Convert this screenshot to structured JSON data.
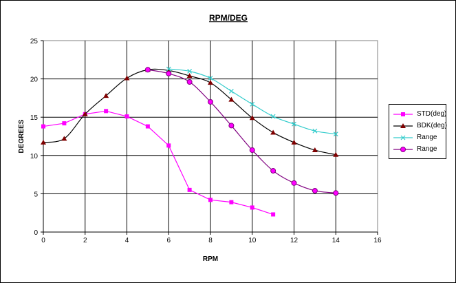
{
  "chart_data": {
    "type": "line",
    "title": "RPM/DEG",
    "xlabel": "RPM",
    "ylabel": "DEGREES",
    "xlim": [
      0,
      16
    ],
    "ylim": [
      0,
      25
    ],
    "xticks": [
      "0",
      "2",
      "4",
      "6",
      "8",
      "10",
      "12",
      "14",
      "16"
    ],
    "yticks": [
      "0",
      "5",
      "10",
      "15",
      "20",
      "25"
    ],
    "grid": true,
    "legend": "right",
    "series": [
      {
        "name": "STD(deg)",
        "color": "#ff00ff",
        "marker": "square",
        "smooth": false,
        "x": [
          0,
          1,
          2,
          3,
          4,
          5,
          6,
          7,
          8,
          9,
          10,
          11
        ],
        "y": [
          13.8,
          14.2,
          15.4,
          15.8,
          15.1,
          13.8,
          11.3,
          5.5,
          4.2,
          3.9,
          3.2,
          2.3
        ]
      },
      {
        "name": "BDK(deg)",
        "color": "#800000",
        "line_color": "#000000",
        "marker": "triangle",
        "smooth": true,
        "x": [
          0,
          1,
          2,
          3,
          4,
          5,
          6,
          7,
          8,
          9,
          10,
          11,
          12,
          13,
          14
        ],
        "y": [
          11.7,
          12.2,
          15.4,
          17.8,
          20.1,
          21.2,
          21.1,
          20.4,
          19.5,
          17.3,
          14.9,
          13.0,
          11.7,
          10.7,
          10.1
        ]
      },
      {
        "name": "Range",
        "color": "#33cccc",
        "marker": "x",
        "smooth": true,
        "x": [
          6,
          7,
          8,
          9,
          10,
          11,
          12,
          13,
          14
        ],
        "y": [
          21.3,
          21.0,
          20.1,
          18.4,
          16.7,
          15.1,
          14.1,
          13.2,
          12.8
        ]
      },
      {
        "name": "Range",
        "color": "#800080",
        "marker_fill": "#ff00ff",
        "marker": "circle",
        "smooth": true,
        "x": [
          5,
          6,
          7,
          8,
          9,
          10,
          11,
          12,
          13,
          14
        ],
        "y": [
          21.2,
          20.7,
          19.6,
          17.0,
          13.9,
          10.7,
          8.0,
          6.4,
          5.4,
          5.1
        ]
      }
    ]
  }
}
